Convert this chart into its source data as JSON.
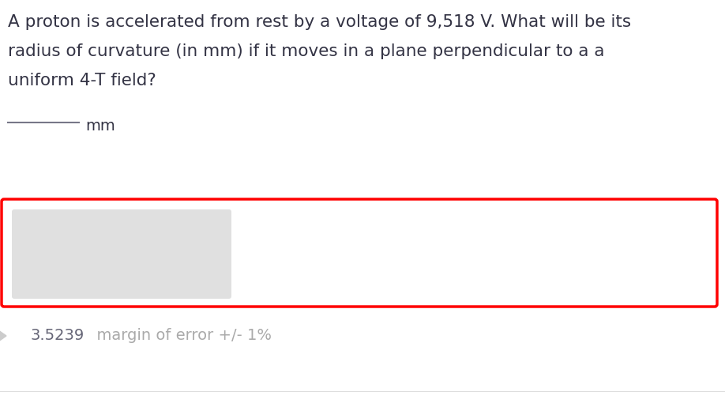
{
  "background_color": "#ffffff",
  "question_line1": "A proton is accelerated from rest by a voltage of 9,518 V. What will be its",
  "question_line2": "radius of curvature (in mm) if it moves in a plane perpendicular to a a",
  "question_line3": "uniform 4-T field?",
  "blank_label": "mm",
  "answer_value": "3.5239",
  "answer_suffix": "  margin of error +/- 1%",
  "answer_color": "#aaaaaa",
  "answer_value_color": "#666677",
  "question_color": "#333344",
  "input_box_color": "#e0e0e0",
  "red_border_color": "#ff0000",
  "bottom_line_color": "#dddddd",
  "arrow_color": "#cccccc",
  "question_fontsize": 15.5,
  "blank_fontsize": 14,
  "answer_fontsize": 14
}
